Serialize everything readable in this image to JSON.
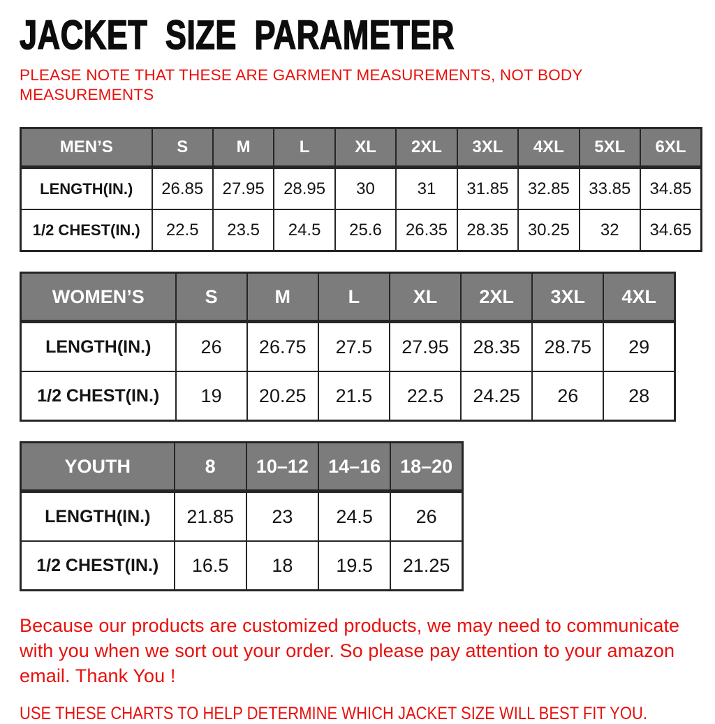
{
  "page": {
    "title": "JACKET SIZE PARAMETER",
    "note": "PLEASE NOTE THAT THESE ARE GARMENT MEASUREMENTS, NOT BODY MEASUREMENTS",
    "footer_paragraph": "Because our products are customized products, we may need to communicate with you when we sort out your order. So please pay attention to your amazon email. Thank You !",
    "footer_caps": "USE THESE CHARTS TO HELP DETERMINE WHICH JACKET SIZE WILL BEST FIT YOU."
  },
  "colors": {
    "accent_red": "#e8100c",
    "table_header_gray": "#7c7c7c",
    "table_border_dark": "#262626",
    "table_header_text": "#ffffff",
    "body_text_black": "#151515"
  },
  "tables": [
    {
      "id": "mens",
      "title": "MEN’S",
      "header": [
        "MEN’S",
        "S",
        "M",
        "L",
        "XL",
        "2XL",
        "3XL",
        "4XL",
        "5XL",
        "6XL"
      ],
      "rows": [
        [
          "LENGTH(IN.)",
          "26.85",
          "27.95",
          "28.95",
          "30",
          "31",
          "31.85",
          "32.85",
          "33.85",
          "34.85"
        ],
        [
          "1/2 CHEST(IN.)",
          "22.5",
          "23.5",
          "24.5",
          "25.6",
          "26.35",
          "28.35",
          "30.25",
          "32",
          "34.65"
        ]
      ]
    },
    {
      "id": "womens",
      "title": "WOMEN’S",
      "header": [
        "WOMEN’S",
        "S",
        "M",
        "L",
        "XL",
        "2XL",
        "3XL",
        "4XL"
      ],
      "rows": [
        [
          "LENGTH(IN.)",
          "26",
          "26.75",
          "27.5",
          "27.95",
          "28.35",
          "28.75",
          "29"
        ],
        [
          "1/2 CHEST(IN.)",
          "19",
          "20.25",
          "21.5",
          "22.5",
          "24.25",
          "26",
          "28"
        ]
      ]
    },
    {
      "id": "youth",
      "title": "YOUTH",
      "header": [
        "YOUTH",
        "8",
        "10–12",
        "14–16",
        "18–20"
      ],
      "rows": [
        [
          "LENGTH(IN.)",
          "21.85",
          "23",
          "24.5",
          "26"
        ],
        [
          "1/2 CHEST(IN.)",
          "16.5",
          "18",
          "19.5",
          "21.25"
        ]
      ]
    }
  ]
}
